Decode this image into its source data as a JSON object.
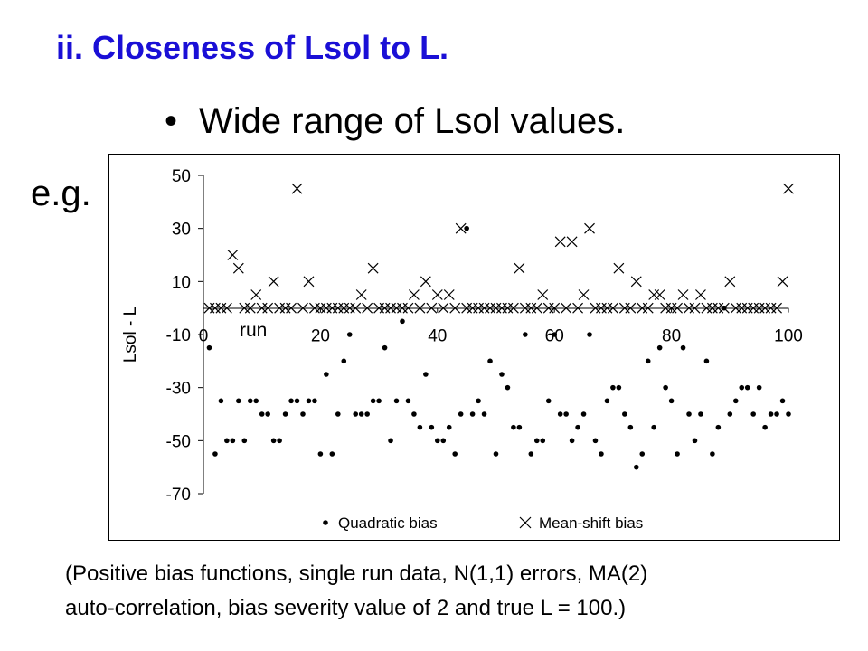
{
  "slide": {
    "title": "ii.  Closeness of Lsol to L.",
    "bullet": "Wide range of Lsol values.",
    "eg": "e.g.",
    "note_line1": "(Positive bias functions, single run data, N(1,1) errors, MA(2)",
    "note_line2": "auto-correlation, bias severity value of 2 and true L = 100.)"
  },
  "chart_data": {
    "type": "scatter",
    "title": "",
    "xlabel": "run",
    "ylabel": "Lsol - L",
    "xlim": [
      0,
      100
    ],
    "ylim": [
      -70,
      50
    ],
    "xticks": [
      "0",
      "20",
      "40",
      "60",
      "80",
      "100"
    ],
    "yticks": [
      "50",
      "30",
      "10",
      "-10",
      "-30",
      "-50",
      "-70"
    ],
    "grid": false,
    "legend_position": "bottom",
    "reference_line_y": 0,
    "series": [
      {
        "name": "Quadratic bias",
        "marker": "dot",
        "color": "#000000",
        "points": [
          [
            1,
            -15
          ],
          [
            2,
            -55
          ],
          [
            3,
            -35
          ],
          [
            4,
            -50
          ],
          [
            5,
            -50
          ],
          [
            6,
            -35
          ],
          [
            7,
            -50
          ],
          [
            8,
            -35
          ],
          [
            9,
            -35
          ],
          [
            10,
            -40
          ],
          [
            11,
            -40
          ],
          [
            12,
            -50
          ],
          [
            13,
            -50
          ],
          [
            14,
            -40
          ],
          [
            15,
            -35
          ],
          [
            16,
            -35
          ],
          [
            17,
            -40
          ],
          [
            18,
            -35
          ],
          [
            19,
            -35
          ],
          [
            20,
            -55
          ],
          [
            21,
            -25
          ],
          [
            22,
            -55
          ],
          [
            23,
            -40
          ],
          [
            24,
            -20
          ],
          [
            25,
            -10
          ],
          [
            26,
            -40
          ],
          [
            27,
            -40
          ],
          [
            28,
            -40
          ],
          [
            29,
            -35
          ],
          [
            30,
            -35
          ],
          [
            31,
            -15
          ],
          [
            32,
            -50
          ],
          [
            33,
            -35
          ],
          [
            34,
            -5
          ],
          [
            35,
            -35
          ],
          [
            36,
            -40
          ],
          [
            37,
            -45
          ],
          [
            38,
            -25
          ],
          [
            39,
            -45
          ],
          [
            40,
            -50
          ],
          [
            41,
            -50
          ],
          [
            42,
            -45
          ],
          [
            43,
            -55
          ],
          [
            44,
            -40
          ],
          [
            45,
            30
          ],
          [
            46,
            -40
          ],
          [
            47,
            -35
          ],
          [
            48,
            -40
          ],
          [
            49,
            -20
          ],
          [
            50,
            -55
          ],
          [
            51,
            -25
          ],
          [
            52,
            -30
          ],
          [
            53,
            -45
          ],
          [
            54,
            -45
          ],
          [
            55,
            -10
          ],
          [
            56,
            -55
          ],
          [
            57,
            -50
          ],
          [
            58,
            -50
          ],
          [
            59,
            -35
          ],
          [
            60,
            -10
          ],
          [
            61,
            -40
          ],
          [
            62,
            -40
          ],
          [
            63,
            -50
          ],
          [
            64,
            -45
          ],
          [
            65,
            -40
          ],
          [
            66,
            -10
          ],
          [
            67,
            -50
          ],
          [
            68,
            -55
          ],
          [
            69,
            -35
          ],
          [
            70,
            -30
          ],
          [
            71,
            -30
          ],
          [
            72,
            -40
          ],
          [
            73,
            -45
          ],
          [
            74,
            -60
          ],
          [
            75,
            -55
          ],
          [
            76,
            -20
          ],
          [
            77,
            -45
          ],
          [
            78,
            -15
          ],
          [
            79,
            -30
          ],
          [
            80,
            -35
          ],
          [
            81,
            -55
          ],
          [
            82,
            -15
          ],
          [
            83,
            -40
          ],
          [
            84,
            -50
          ],
          [
            85,
            -40
          ],
          [
            86,
            -20
          ],
          [
            87,
            -55
          ],
          [
            88,
            -45
          ],
          [
            89,
            0
          ],
          [
            90,
            -40
          ],
          [
            91,
            -35
          ],
          [
            92,
            -30
          ],
          [
            93,
            -30
          ],
          [
            94,
            -40
          ],
          [
            95,
            -30
          ],
          [
            96,
            -45
          ],
          [
            97,
            -40
          ],
          [
            98,
            -40
          ],
          [
            99,
            -35
          ],
          [
            100,
            -40
          ]
        ]
      },
      {
        "name": "Mean-shift bias",
        "marker": "cross",
        "color": "#000000",
        "points": [
          [
            1,
            0
          ],
          [
            2,
            0
          ],
          [
            3,
            0
          ],
          [
            4,
            0
          ],
          [
            5,
            20
          ],
          [
            6,
            15
          ],
          [
            7,
            0
          ],
          [
            8,
            0
          ],
          [
            9,
            5
          ],
          [
            10,
            0
          ],
          [
            11,
            0
          ],
          [
            12,
            10
          ],
          [
            13,
            0
          ],
          [
            14,
            0
          ],
          [
            15,
            0
          ],
          [
            16,
            45
          ],
          [
            17,
            0
          ],
          [
            18,
            10
          ],
          [
            19,
            0
          ],
          [
            20,
            0
          ],
          [
            21,
            0
          ],
          [
            22,
            0
          ],
          [
            23,
            0
          ],
          [
            24,
            0
          ],
          [
            25,
            0
          ],
          [
            26,
            0
          ],
          [
            27,
            5
          ],
          [
            28,
            0
          ],
          [
            29,
            15
          ],
          [
            30,
            0
          ],
          [
            31,
            0
          ],
          [
            32,
            0
          ],
          [
            33,
            0
          ],
          [
            34,
            0
          ],
          [
            35,
            0
          ],
          [
            36,
            5
          ],
          [
            37,
            0
          ],
          [
            38,
            10
          ],
          [
            39,
            0
          ],
          [
            40,
            5
          ],
          [
            41,
            0
          ],
          [
            42,
            5
          ],
          [
            43,
            0
          ],
          [
            44,
            30
          ],
          [
            45,
            0
          ],
          [
            46,
            0
          ],
          [
            47,
            0
          ],
          [
            48,
            0
          ],
          [
            49,
            0
          ],
          [
            50,
            0
          ],
          [
            51,
            0
          ],
          [
            52,
            0
          ],
          [
            53,
            0
          ],
          [
            54,
            15
          ],
          [
            55,
            0
          ],
          [
            56,
            0
          ],
          [
            57,
            0
          ],
          [
            58,
            5
          ],
          [
            59,
            0
          ],
          [
            60,
            0
          ],
          [
            61,
            25
          ],
          [
            62,
            0
          ],
          [
            63,
            25
          ],
          [
            64,
            0
          ],
          [
            65,
            5
          ],
          [
            66,
            30
          ],
          [
            67,
            0
          ],
          [
            68,
            0
          ],
          [
            69,
            0
          ],
          [
            70,
            0
          ],
          [
            71,
            15
          ],
          [
            72,
            0
          ],
          [
            73,
            0
          ],
          [
            74,
            10
          ],
          [
            75,
            0
          ],
          [
            76,
            0
          ],
          [
            77,
            5
          ],
          [
            78,
            5
          ],
          [
            79,
            0
          ],
          [
            80,
            0
          ],
          [
            81,
            0
          ],
          [
            82,
            5
          ],
          [
            83,
            0
          ],
          [
            84,
            0
          ],
          [
            85,
            5
          ],
          [
            86,
            0
          ],
          [
            87,
            0
          ],
          [
            88,
            0
          ],
          [
            89,
            0
          ],
          [
            90,
            10
          ],
          [
            91,
            0
          ],
          [
            92,
            0
          ],
          [
            93,
            0
          ],
          [
            94,
            0
          ],
          [
            95,
            0
          ],
          [
            96,
            0
          ],
          [
            97,
            0
          ],
          [
            98,
            0
          ],
          [
            99,
            10
          ],
          [
            100,
            45
          ]
        ]
      }
    ]
  }
}
